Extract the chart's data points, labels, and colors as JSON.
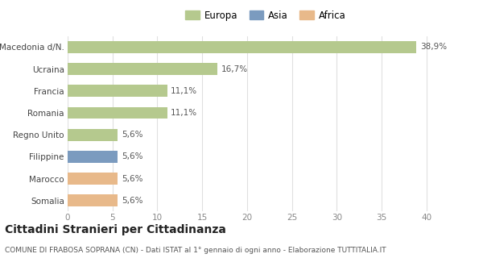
{
  "categories": [
    "Macedonia d/N.",
    "Ucraina",
    "Francia",
    "Romania",
    "Regno Unito",
    "Filippine",
    "Marocco",
    "Somalia"
  ],
  "values": [
    38.9,
    16.7,
    11.1,
    11.1,
    5.6,
    5.6,
    5.6,
    5.6
  ],
  "labels": [
    "38,9%",
    "16,7%",
    "11,1%",
    "11,1%",
    "5,6%",
    "5,6%",
    "5,6%",
    "5,6%"
  ],
  "colors": [
    "#b5c98e",
    "#b5c98e",
    "#b5c98e",
    "#b5c98e",
    "#b5c98e",
    "#7b9bbf",
    "#e8b98a",
    "#e8b98a"
  ],
  "legend_labels": [
    "Europa",
    "Asia",
    "Africa"
  ],
  "legend_colors": [
    "#b5c98e",
    "#7b9bbf",
    "#e8b98a"
  ],
  "xlim": [
    0,
    42
  ],
  "xticks": [
    0,
    5,
    10,
    15,
    20,
    25,
    30,
    35,
    40
  ],
  "title": "Cittadini Stranieri per Cittadinanza",
  "subtitle": "COMUNE DI FRABOSA SOPRANA (CN) - Dati ISTAT al 1° gennaio di ogni anno - Elaborazione TUTTITALIA.IT",
  "background_color": "#ffffff",
  "grid_color": "#e0e0e0",
  "bar_height": 0.55,
  "title_fontsize": 10,
  "subtitle_fontsize": 6.5,
  "label_fontsize": 7.5,
  "tick_fontsize": 7.5,
  "legend_fontsize": 8.5
}
